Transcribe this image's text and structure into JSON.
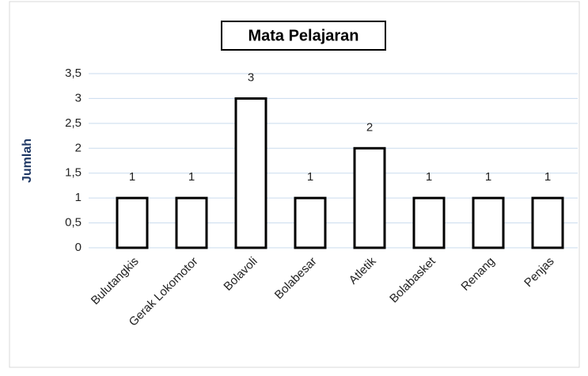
{
  "chart_data": {
    "type": "bar",
    "title": "Mata Pelajaran",
    "y_label": "Jumlah",
    "categories": [
      "Bulutangkis",
      "Gerak Lokomotor",
      "Bolavoli",
      "Bolabesar",
      "Atletik",
      "Bolabasket",
      "Renang",
      "Penjas"
    ],
    "values": [
      1,
      1,
      3,
      1,
      2,
      1,
      1,
      1
    ],
    "color": "#ffffff",
    "ylim": [
      0,
      3.5
    ],
    "yticks": [
      0,
      {
        "value": 0.5,
        "label": "0,5"
      },
      1,
      {
        "value": 1.5,
        "label": "1,5"
      },
      2,
      {
        "value": 2.5,
        "label": "2,5"
      },
      3,
      {
        "value": 3.5,
        "label": "3,5"
      }
    ],
    "grid": true
  }
}
